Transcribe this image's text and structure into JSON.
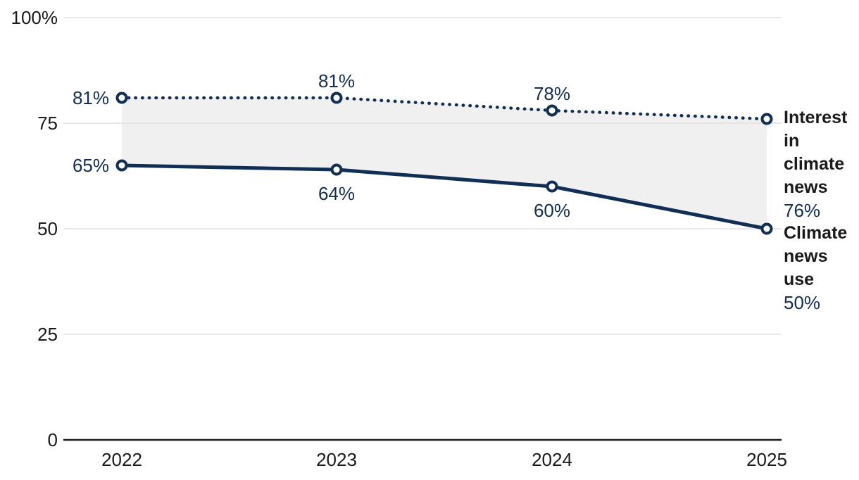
{
  "chart_data": {
    "type": "line",
    "title": "",
    "xlabel": "",
    "ylabel": "",
    "x_labels": [
      "2022",
      "2023",
      "2024",
      "2025"
    ],
    "x": [
      2022,
      2023,
      2024,
      2025
    ],
    "ylim": [
      0,
      100
    ],
    "grid": "horizontal",
    "legend_position": "right-end-labels",
    "y_ticks": [
      {
        "value": 100,
        "label": "100%"
      },
      {
        "value": 75,
        "label": "75"
      },
      {
        "value": 50,
        "label": "50"
      },
      {
        "value": 25,
        "label": "25"
      },
      {
        "value": 0,
        "label": "0"
      }
    ],
    "series": [
      {
        "name": "Interest in climate news",
        "style": "dotted",
        "values": [
          81,
          81,
          78,
          76
        ],
        "end_label": "Interest in climate news",
        "end_value_label": "76%"
      },
      {
        "name": "Climate news use",
        "style": "solid",
        "values": [
          65,
          64,
          60,
          50
        ],
        "end_label": "Climate news use",
        "end_value_label": "50%"
      }
    ],
    "point_labels": [
      {
        "series": 0,
        "point": 0,
        "text": "81%",
        "placement": "left"
      },
      {
        "series": 0,
        "point": 1,
        "text": "81%",
        "placement": "above"
      },
      {
        "series": 0,
        "point": 2,
        "text": "78%",
        "placement": "above"
      },
      {
        "series": 1,
        "point": 0,
        "text": "65%",
        "placement": "left"
      },
      {
        "series": 1,
        "point": 1,
        "text": "64%",
        "placement": "below"
      },
      {
        "series": 1,
        "point": 2,
        "text": "60%",
        "placement": "below"
      }
    ],
    "band_between_series": true,
    "colors": {
      "series": "#112e54",
      "axis_text": "#1a1a1a",
      "gridline": "#e0e0e0",
      "axis_line": "#1a1a1a",
      "band_fill": "#f0f0f0",
      "background": "#ffffff"
    }
  }
}
